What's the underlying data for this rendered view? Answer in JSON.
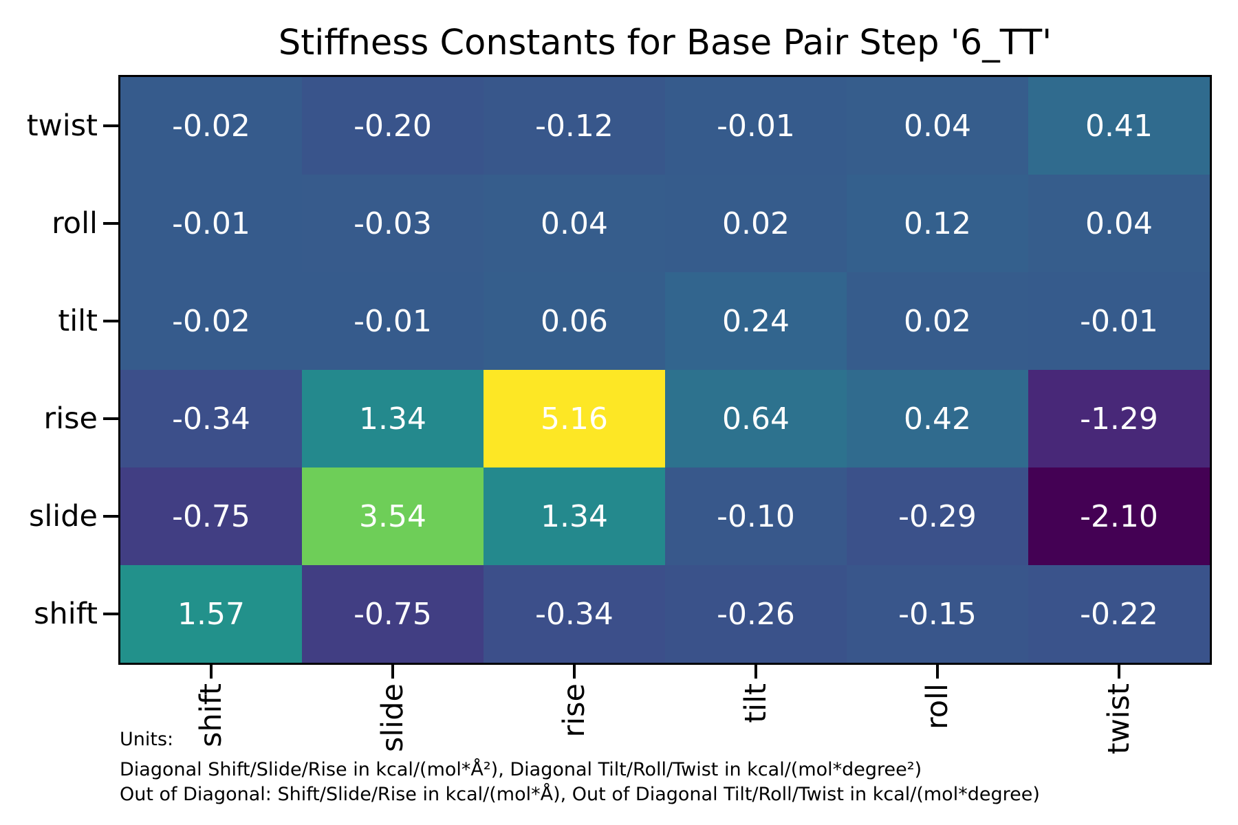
{
  "title": "Stiffness Constants for Base Pair Step '6_TT'",
  "chart_data": {
    "type": "heatmap",
    "title": "Stiffness Constants for Base Pair Step '6_TT'",
    "x_labels": [
      "shift",
      "slide",
      "rise",
      "tilt",
      "roll",
      "twist"
    ],
    "y_labels": [
      "twist",
      "roll",
      "tilt",
      "rise",
      "slide",
      "shift"
    ],
    "matrix": [
      [
        -0.02,
        -0.2,
        -0.12,
        -0.01,
        0.04,
        0.41
      ],
      [
        -0.01,
        -0.03,
        0.04,
        0.02,
        0.12,
        0.04
      ],
      [
        -0.02,
        -0.01,
        0.06,
        0.24,
        0.02,
        -0.01
      ],
      [
        -0.34,
        1.34,
        5.16,
        0.64,
        0.42,
        -1.29
      ],
      [
        -0.75,
        3.54,
        1.34,
        -0.1,
        -0.29,
        -2.1
      ],
      [
        1.57,
        -0.75,
        -0.34,
        -0.26,
        -0.15,
        -0.22
      ]
    ],
    "matrix_labels": [
      [
        "-0.02",
        "-0.20",
        "-0.12",
        "-0.01",
        "0.04",
        "0.41"
      ],
      [
        "-0.01",
        "-0.03",
        "0.04",
        "0.02",
        "0.12",
        "0.04"
      ],
      [
        "-0.02",
        "-0.01",
        "0.06",
        "0.24",
        "0.02",
        "-0.01"
      ],
      [
        "-0.34",
        "1.34",
        "5.16",
        "0.64",
        "0.42",
        "-1.29"
      ],
      [
        "-0.75",
        "3.54",
        "1.34",
        "-0.10",
        "-0.29",
        "-2.10"
      ],
      [
        "1.57",
        "-0.75",
        "-0.34",
        "-0.26",
        "-0.15",
        "-0.22"
      ]
    ],
    "colormap": "viridis",
    "colormap_anchors": [
      "#440154",
      "#482878",
      "#3e4989",
      "#31688e",
      "#26828e",
      "#1f9e89",
      "#35b779",
      "#6ece58",
      "#b5de2b",
      "#fde725"
    ],
    "vmin": -2.1,
    "vmax": 5.16,
    "cell_text_color": "#ffffff",
    "grid": false,
    "x_tick_rotation": 90
  },
  "footer": {
    "units_label": "Units:",
    "diagonal_line": "Diagonal Shift/Slide/Rise in kcal/(mol*Å²), Diagonal Tilt/Roll/Twist in kcal/(mol*degree²)",
    "offdiagonal_line": "Out of Diagonal: Shift/Slide/Rise in kcal/(mol*Å), Out of Diagonal Tilt/Roll/Twist in kcal/(mol*degree)"
  }
}
